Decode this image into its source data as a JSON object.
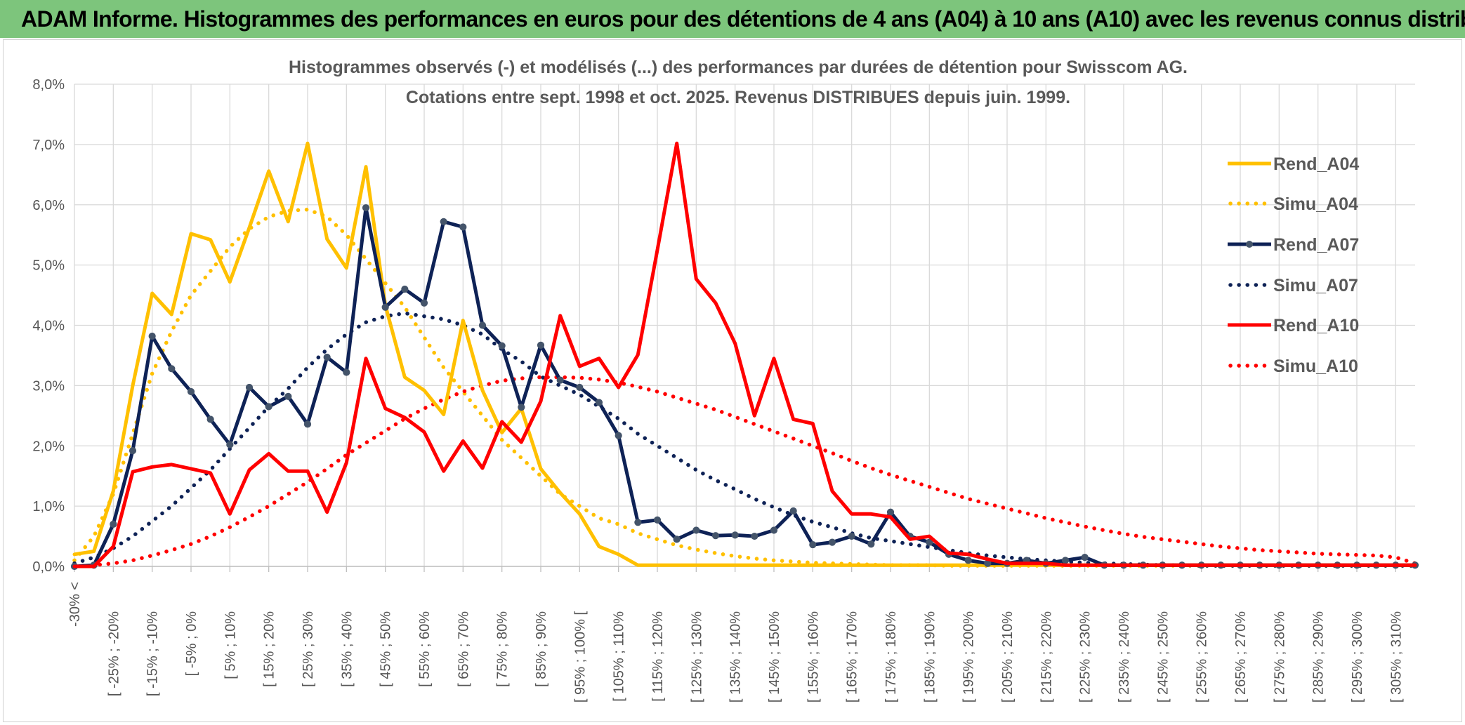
{
  "banner": {
    "title": "ADAM Informe. Histogrammes des performances en euros pour des détentions de 4 ans (A04) à 10 ans (A10) avec les revenus connus distribués"
  },
  "chart_data": {
    "type": "line",
    "title_lines": [
      "Histogrammes observés (-) et modélisés (...) des performances par durées de détention pour Swisscom AG.",
      "Cotations entre sept. 1998 et oct. 2025. Revenus DISTRIBUES depuis juin. 1999."
    ],
    "ylim": [
      0,
      8
    ],
    "y_ticks": [
      "0,0%",
      "1,0%",
      "2,0%",
      "3,0%",
      "4,0%",
      "5,0%",
      "6,0%",
      "7,0%",
      "8,0%"
    ],
    "x_tick_labels": [
      "-30% <",
      "[ -25% ; -20%",
      "[ -15% ; -10%",
      "[ -5% ; 0%",
      "[ 5% ; 10%",
      "[ 15% ; 20%",
      "[ 25% ; 30%",
      "[ 35% ; 40%",
      "[ 45% ; 50%",
      "[ 55% ; 60%",
      "[ 65% ; 70%",
      "[ 75% ; 80%",
      "[ 85% ; 90%",
      "[ 95% ; 100% [",
      "[ 105% ; 110%",
      "[ 115% ; 120%",
      "[ 125% ; 130%",
      "[ 135% ; 140%",
      "[ 145% ; 150%",
      "[ 155% ; 160%",
      "[ 165% ; 170%",
      "[ 175% ; 180%",
      "[ 185% ; 190%",
      "[ 195% ; 200%",
      "[ 205% ; 210%",
      "[ 215% ; 220%",
      "[ 225% ; 230%",
      "[ 235% ; 240%",
      "[ 245% ; 250%",
      "[ 255% ; 260%",
      "[ 265% ; 270%",
      "[ 275% ; 280%",
      "[ 285% ; 290%",
      "[ 295% ; 300%",
      "[ 305% ; 310%"
    ],
    "grid": true,
    "legend_position": "right",
    "series": [
      {
        "name": "Rend_A04",
        "style": "solid",
        "markers": false,
        "color": "#ffc000",
        "values": [
          0.2,
          0.25,
          1.25,
          3.0,
          4.53,
          4.18,
          5.52,
          5.42,
          4.72,
          5.62,
          6.56,
          5.72,
          7.02,
          5.43,
          4.95,
          6.63,
          4.33,
          3.14,
          2.92,
          2.52,
          4.08,
          2.92,
          2.22,
          2.62,
          1.62,
          1.22,
          0.87,
          0.33,
          0.2,
          0.02,
          0.02,
          0.02,
          0.02,
          0.02,
          0.02,
          0.02,
          0.02,
          0.02,
          0.02,
          0.02,
          0.02,
          0.02,
          0.02,
          0.02,
          0.02,
          0.02,
          0.02,
          0.02,
          0.02,
          0.02,
          0.02,
          0.02,
          0.02,
          0.02,
          0.02,
          0.02,
          0.02,
          0.02,
          0.02,
          0.02,
          0.02,
          0.02,
          0.02,
          0.02,
          0.02,
          0.02,
          0.02,
          0.02,
          0.02,
          0.02
        ]
      },
      {
        "name": "Simu_A04",
        "style": "dotted",
        "markers": false,
        "color": "#ffc000",
        "values": [
          0.1,
          0.5,
          1.2,
          2.2,
          3.2,
          3.9,
          4.5,
          4.9,
          5.3,
          5.6,
          5.8,
          5.9,
          5.92,
          5.8,
          5.5,
          5.1,
          4.7,
          4.3,
          3.8,
          3.3,
          2.9,
          2.5,
          2.1,
          1.8,
          1.5,
          1.2,
          1.0,
          0.8,
          0.7,
          0.55,
          0.45,
          0.35,
          0.28,
          0.22,
          0.17,
          0.13,
          0.1,
          0.08,
          0.06,
          0.05,
          0.04,
          0.03,
          0.02,
          0.02,
          0.02,
          0.01,
          0.01,
          0.01,
          0.01,
          0.01,
          0.01,
          0.01,
          0.01,
          0.01,
          0.01,
          0.01,
          0.01,
          0.01,
          0.01,
          0.01,
          0.01,
          0.01,
          0.01,
          0.01,
          0.01,
          0.01,
          0.01,
          0.01,
          0.01,
          0.01
        ]
      },
      {
        "name": "Rend_A07",
        "style": "solid",
        "markers": true,
        "color": "#0e2256",
        "values": [
          0.0,
          0.02,
          0.7,
          1.92,
          3.82,
          3.28,
          2.9,
          2.44,
          2.02,
          2.97,
          2.65,
          2.82,
          2.36,
          3.47,
          3.22,
          5.95,
          4.3,
          4.6,
          4.37,
          5.72,
          5.63,
          4.0,
          3.66,
          2.64,
          3.67,
          3.09,
          2.97,
          2.72,
          2.17,
          0.73,
          0.77,
          0.45,
          0.6,
          0.51,
          0.52,
          0.5,
          0.6,
          0.92,
          0.36,
          0.4,
          0.5,
          0.37,
          0.9,
          0.5,
          0.4,
          0.2,
          0.1,
          0.05,
          0.05,
          0.1,
          0.05,
          0.1,
          0.15,
          0.02,
          0.02,
          0.02,
          0.02,
          0.02,
          0.02,
          0.02,
          0.02,
          0.02,
          0.02,
          0.02,
          0.02,
          0.02,
          0.02,
          0.02,
          0.02,
          0.02
        ]
      },
      {
        "name": "Simu_A07",
        "style": "dotted",
        "markers": false,
        "color": "#0e2256",
        "values": [
          0.05,
          0.15,
          0.3,
          0.5,
          0.75,
          1.0,
          1.3,
          1.6,
          1.95,
          2.3,
          2.65,
          2.95,
          3.3,
          3.6,
          3.85,
          4.05,
          4.15,
          4.2,
          4.15,
          4.1,
          4.0,
          3.85,
          3.6,
          3.4,
          3.15,
          3.0,
          2.85,
          2.65,
          2.45,
          2.2,
          2.0,
          1.8,
          1.6,
          1.43,
          1.28,
          1.12,
          0.98,
          0.85,
          0.74,
          0.65,
          0.55,
          0.47,
          0.42,
          0.37,
          0.32,
          0.27,
          0.22,
          0.18,
          0.15,
          0.12,
          0.1,
          0.08,
          0.06,
          0.05,
          0.04,
          0.03,
          0.02,
          0.02,
          0.01,
          0.01,
          0.01,
          0.01,
          0.01,
          0.01,
          0.01,
          0.01,
          0.01,
          0.01,
          0.01,
          0.01
        ]
      },
      {
        "name": "Rend_A10",
        "style": "solid",
        "markers": false,
        "color": "#ff0000",
        "values": [
          0.0,
          0.0,
          0.33,
          1.57,
          1.65,
          1.69,
          1.62,
          1.55,
          0.87,
          1.6,
          1.87,
          1.58,
          1.58,
          0.9,
          1.72,
          3.45,
          2.62,
          2.47,
          2.23,
          1.58,
          2.08,
          1.63,
          2.4,
          2.06,
          2.74,
          4.16,
          3.32,
          3.45,
          2.97,
          3.51,
          5.25,
          7.02,
          4.77,
          4.37,
          3.7,
          2.5,
          3.45,
          2.44,
          2.37,
          1.25,
          0.87,
          0.87,
          0.82,
          0.45,
          0.5,
          0.22,
          0.2,
          0.12,
          0.05,
          0.05,
          0.05,
          0.02,
          0.02,
          0.02,
          0.02,
          0.02,
          0.02,
          0.02,
          0.02,
          0.02,
          0.02,
          0.02,
          0.02,
          0.02,
          0.02,
          0.02,
          0.02,
          0.02,
          0.02,
          0.02
        ]
      },
      {
        "name": "Simu_A10",
        "style": "dotted",
        "markers": false,
        "color": "#ff0000",
        "values": [
          0.0,
          0.02,
          0.05,
          0.1,
          0.18,
          0.27,
          0.37,
          0.5,
          0.65,
          0.82,
          1.0,
          1.2,
          1.4,
          1.62,
          1.85,
          2.05,
          2.25,
          2.45,
          2.62,
          2.77,
          2.9,
          3.0,
          3.08,
          3.12,
          3.14,
          3.14,
          3.13,
          3.1,
          3.05,
          2.98,
          2.9,
          2.8,
          2.7,
          2.6,
          2.48,
          2.36,
          2.24,
          2.12,
          2.0,
          1.88,
          1.75,
          1.63,
          1.52,
          1.42,
          1.32,
          1.22,
          1.12,
          1.04,
          0.96,
          0.88,
          0.8,
          0.73,
          0.66,
          0.6,
          0.54,
          0.49,
          0.45,
          0.41,
          0.37,
          0.33,
          0.3,
          0.27,
          0.25,
          0.23,
          0.21,
          0.2,
          0.19,
          0.18,
          0.15,
          0.05
        ]
      }
    ]
  }
}
